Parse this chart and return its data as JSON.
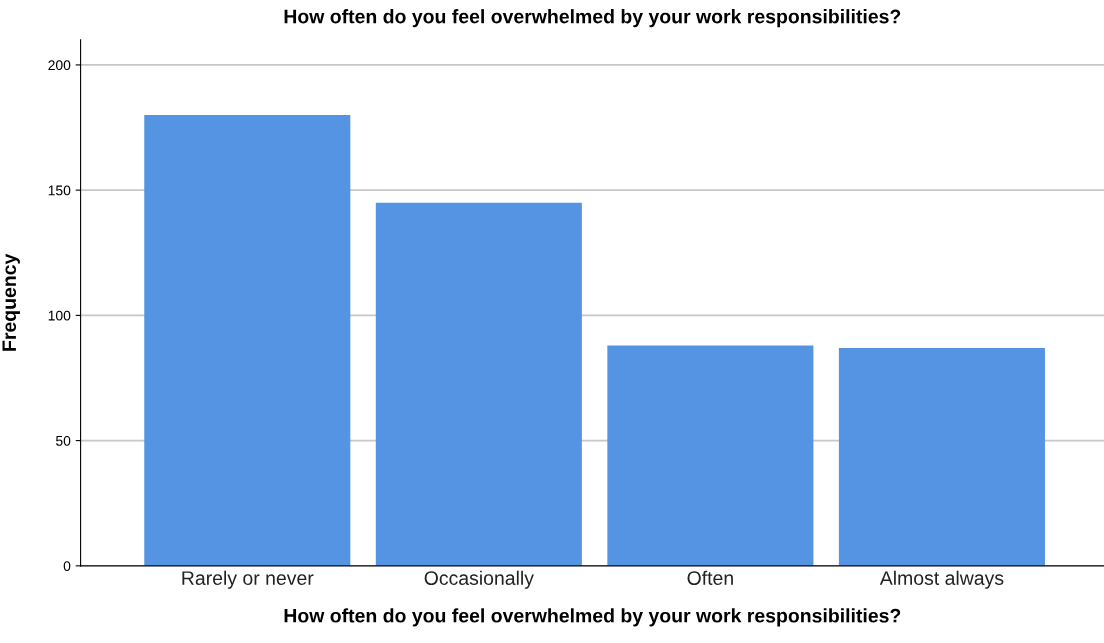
{
  "chart_data": {
    "type": "bar",
    "title": "How often do you feel overwhelmed by your work responsibilities?",
    "xlabel": "How often do you feel overwhelmed by your work responsibilities?",
    "ylabel": "Frequency",
    "categories": [
      "Rarely or never",
      "Occasionally",
      "Often",
      "Almost always"
    ],
    "values": [
      180,
      145,
      88,
      87
    ],
    "color": "#5594e2",
    "ylim": [
      0,
      210
    ],
    "yticks": [
      0,
      50,
      100,
      150,
      200
    ],
    "grid": "y",
    "legend": false
  }
}
